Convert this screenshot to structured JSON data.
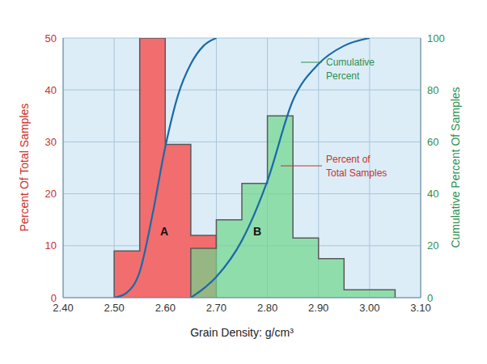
{
  "chart_data": {
    "type": "histogram",
    "xlabel": "Grain Density: g/cm³",
    "ylabel": "Percent Of Total Samples",
    "y2label": "Cumulative Percent Of Samples",
    "xlim": [
      2.4,
      3.1
    ],
    "xticks": [
      {
        "value": 2.4,
        "label": "2.40"
      },
      {
        "value": 2.5,
        "label": "2.50"
      },
      {
        "value": 2.6,
        "label": "2.60"
      },
      {
        "value": 2.7,
        "label": "2.70"
      },
      {
        "value": 2.8,
        "label": "2.80"
      },
      {
        "value": 2.9,
        "label": "2.90"
      },
      {
        "value": 3.0,
        "label": "3.00"
      },
      {
        "value": 3.1,
        "label": "3.10"
      }
    ],
    "ylim": [
      0,
      50
    ],
    "yticks": [
      0,
      10,
      20,
      30,
      40,
      50
    ],
    "y2lim": [
      0,
      100
    ],
    "y2ticks": [
      0,
      20,
      40,
      60,
      80,
      100
    ],
    "grid": true,
    "series": [
      {
        "name": "A",
        "type": "histogram",
        "color": "#f26666",
        "bins": [
          2.5,
          2.55,
          2.6,
          2.65,
          2.7
        ],
        "values": [
          9,
          50,
          29.5,
          12
        ]
      },
      {
        "name": "B",
        "type": "histogram",
        "color": "#6fd68c",
        "bins": [
          2.65,
          2.7,
          2.75,
          2.8,
          2.85,
          2.9,
          2.95,
          3.0,
          3.05
        ],
        "values": [
          9.5,
          15,
          22,
          35,
          11.5,
          7.5,
          1.5,
          1.5
        ]
      },
      {
        "type": "line",
        "axis": "y2",
        "color": "#1a6aa8",
        "marker": "none",
        "x": [
          2.5,
          2.525,
          2.55,
          2.575,
          2.6,
          2.625,
          2.65,
          2.675,
          2.7
        ],
        "values": [
          0,
          2,
          10,
          32,
          58,
          78,
          90,
          97,
          100
        ]
      },
      {
        "type": "line",
        "axis": "y2",
        "color": "#1a6aa8",
        "marker": "none",
        "x": [
          2.65,
          2.7,
          2.75,
          2.8,
          2.85,
          2.9,
          2.95,
          3.0
        ],
        "values": [
          0,
          8,
          22,
          45,
          76,
          90,
          97,
          100
        ]
      }
    ],
    "annotations": [
      {
        "text": "A"
      },
      {
        "text": "B"
      },
      {
        "text": "Cumulative\nPercent"
      },
      {
        "text": "Percent of\nTotal Samples"
      }
    ]
  }
}
